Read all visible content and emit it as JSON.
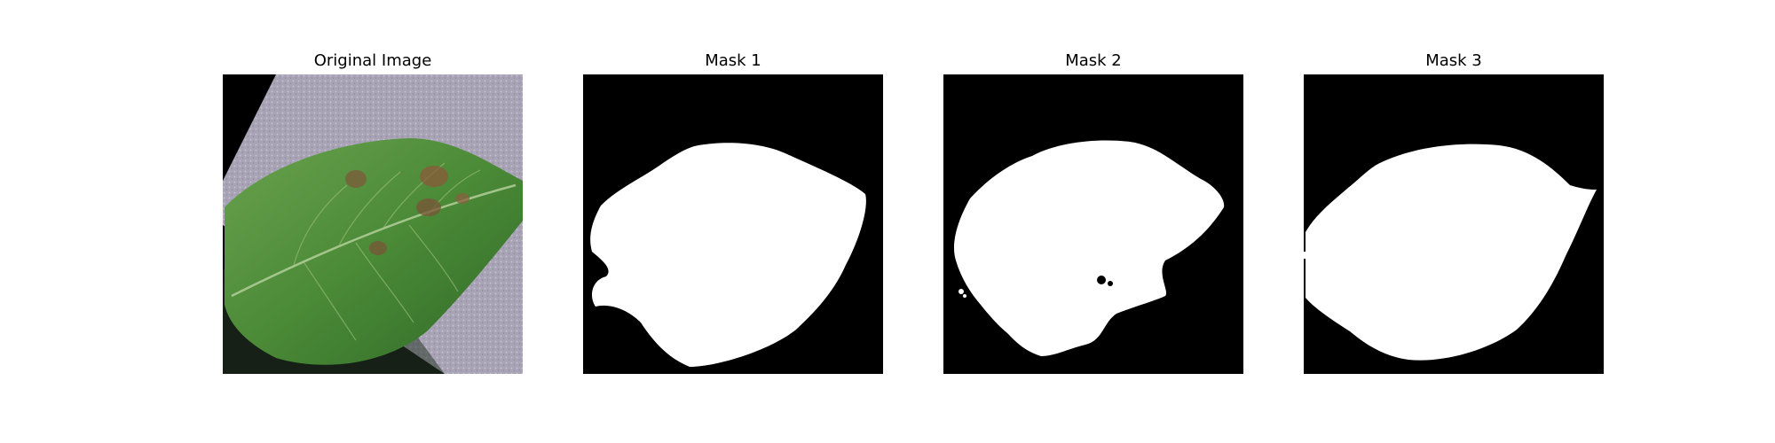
{
  "figure": {
    "panels": [
      {
        "title": "Original Image",
        "kind": "photo",
        "content": "leaf"
      },
      {
        "title": "Mask 1",
        "kind": "mask"
      },
      {
        "title": "Mask 2",
        "kind": "mask"
      },
      {
        "title": "Mask 3",
        "kind": "mask"
      }
    ]
  },
  "colors": {
    "mask_background": "#000000",
    "mask_foreground": "#ffffff",
    "leaf_green": "#4d8a3a",
    "background_gravel": "#a9a3b6"
  }
}
